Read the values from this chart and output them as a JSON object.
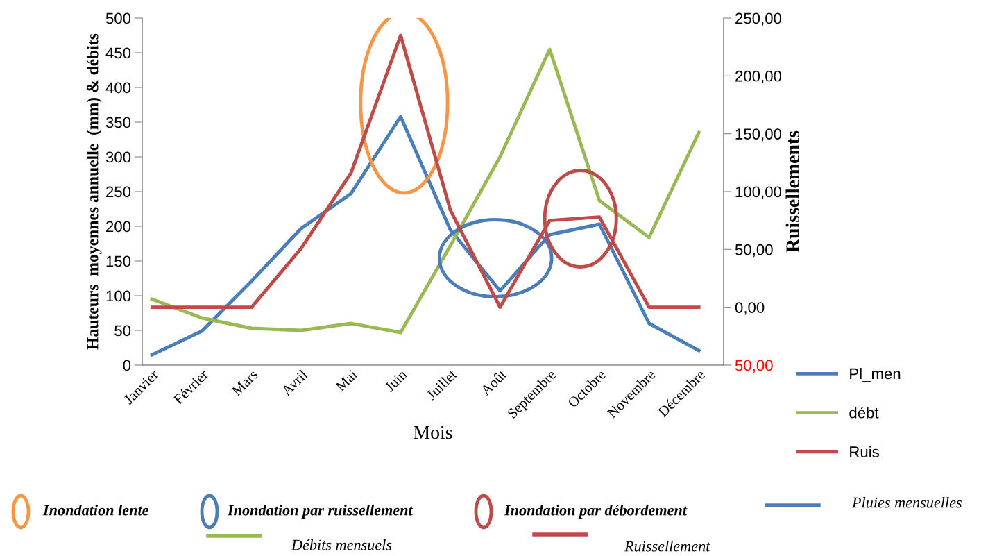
{
  "chart_data": {
    "type": "line",
    "xlabel": "Mois",
    "ylabel": "Hauteurs  moyennes annuelle  (mm) & débits",
    "y2label": "Ruissellements",
    "categories": [
      "Janvier",
      "Février",
      "Mars",
      "Avril",
      "Mai",
      "Juin",
      "Juillet",
      "Août",
      "Septembre",
      "Octobre",
      "Novembre",
      "Décembre"
    ],
    "series": [
      {
        "name": "Pl_men",
        "color": "#4a7ebb",
        "values": [
          15,
          49,
          121,
          197,
          247,
          358,
          195,
          107,
          188,
          203,
          60,
          21
        ]
      },
      {
        "name": "débt",
        "color": "#98b954",
        "values": [
          95,
          68,
          53,
          50,
          60,
          47,
          172,
          300,
          455,
          237,
          184,
          335
        ]
      },
      {
        "name": "Ruis",
        "color": "#be4b48",
        "axis": "y2",
        "values": [
          0,
          0,
          0,
          51,
          116,
          235,
          84,
          0,
          75,
          78,
          0,
          0
        ]
      }
    ],
    "ylim": [
      0,
      500
    ],
    "yticks": [
      0,
      50,
      100,
      150,
      200,
      250,
      300,
      350,
      400,
      450,
      500
    ],
    "y2lim": [
      -50,
      250
    ],
    "y2ticks": [
      {
        "value": -50,
        "label": "50,00"
      },
      {
        "value": 0,
        "label": "0,00"
      },
      {
        "value": 50,
        "label": "50,00"
      },
      {
        "value": 100,
        "label": "100,00"
      },
      {
        "value": 150,
        "label": "150,00"
      },
      {
        "value": 200,
        "label": "200,00"
      },
      {
        "value": 250,
        "label": "250,00"
      }
    ],
    "grid": false,
    "legend": "bottom right",
    "marker": "none",
    "line_style": "solid",
    "annotations": [
      "Inondation lente",
      "Inondation par ruissellement",
      "Inondation par débordement",
      "Pluies mensuelles",
      "Débits mensuels",
      "Ruissellement"
    ]
  }
}
